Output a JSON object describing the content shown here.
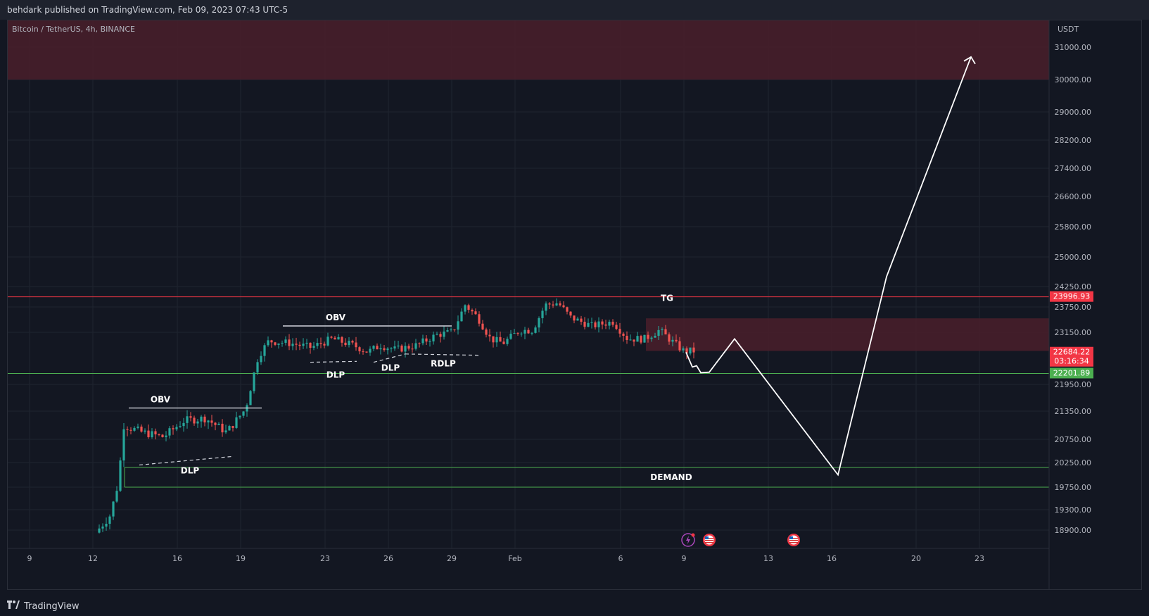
{
  "header": {
    "published_by": "behdark published on TradingView.com, Feb 09, 2023 07:43 UTC-5"
  },
  "footer": {
    "brand": "TradingView",
    "logo_icon": "tradingview-logo-icon"
  },
  "colors": {
    "background": "#131722",
    "grid": "#1f2430",
    "bull": "#26a69a",
    "bear": "#ef5350",
    "zone": "#4a1f2a",
    "resistance_line": "#f23645",
    "support_line": "#4caf50",
    "annotation": "#ffffff"
  },
  "chart_data": {
    "type": "candlestick",
    "title": "Bitcoin / TetherUS, 4h, BINANCE",
    "y_unit": "USDT",
    "y_ticks": [
      31000,
      30000,
      29000,
      28200,
      27400,
      26600,
      25800,
      25000,
      24250,
      23750,
      23150,
      21950,
      21350,
      20750,
      20250,
      19750,
      19300,
      18900
    ],
    "x_ticks": [
      "9",
      "12",
      "16",
      "19",
      "23",
      "26",
      "29",
      "Feb",
      "6",
      "9",
      "13",
      "16",
      "20",
      "23"
    ],
    "price_labels": [
      {
        "value": "23996.93",
        "color": "#f23645"
      },
      {
        "value": "22684.22",
        "countdown": "03:16:34",
        "color": "#f23645"
      },
      {
        "value": "22201.89",
        "color": "#4caf50"
      }
    ],
    "zones": [
      {
        "label": "",
        "from": 30000,
        "to": 31600
      },
      {
        "label": "",
        "from": 22720,
        "to": 23480
      }
    ],
    "horizontal_lines": [
      {
        "label": "TG",
        "value": 23996.93,
        "color": "#f23645"
      },
      {
        "label": "",
        "value": 22201.89,
        "color": "#4caf50"
      }
    ],
    "demand_zone": {
      "label": "DEMAND",
      "from": 19750,
      "to": 20150
    },
    "annotations": [
      {
        "label": "OBV",
        "kind": "level"
      },
      {
        "label": "OBV",
        "kind": "level"
      },
      {
        "label": "DLP",
        "kind": "dashed"
      },
      {
        "label": "DLP",
        "kind": "dashed"
      },
      {
        "label": "DLP",
        "kind": "dashed"
      },
      {
        "label": "RDLP",
        "kind": "dashed"
      }
    ],
    "projection_path": "zigzag down to DEMAND then up to 30000+",
    "event_icons": [
      "lightning-icon",
      "us-flag-icon",
      "us-flag-icon"
    ]
  }
}
